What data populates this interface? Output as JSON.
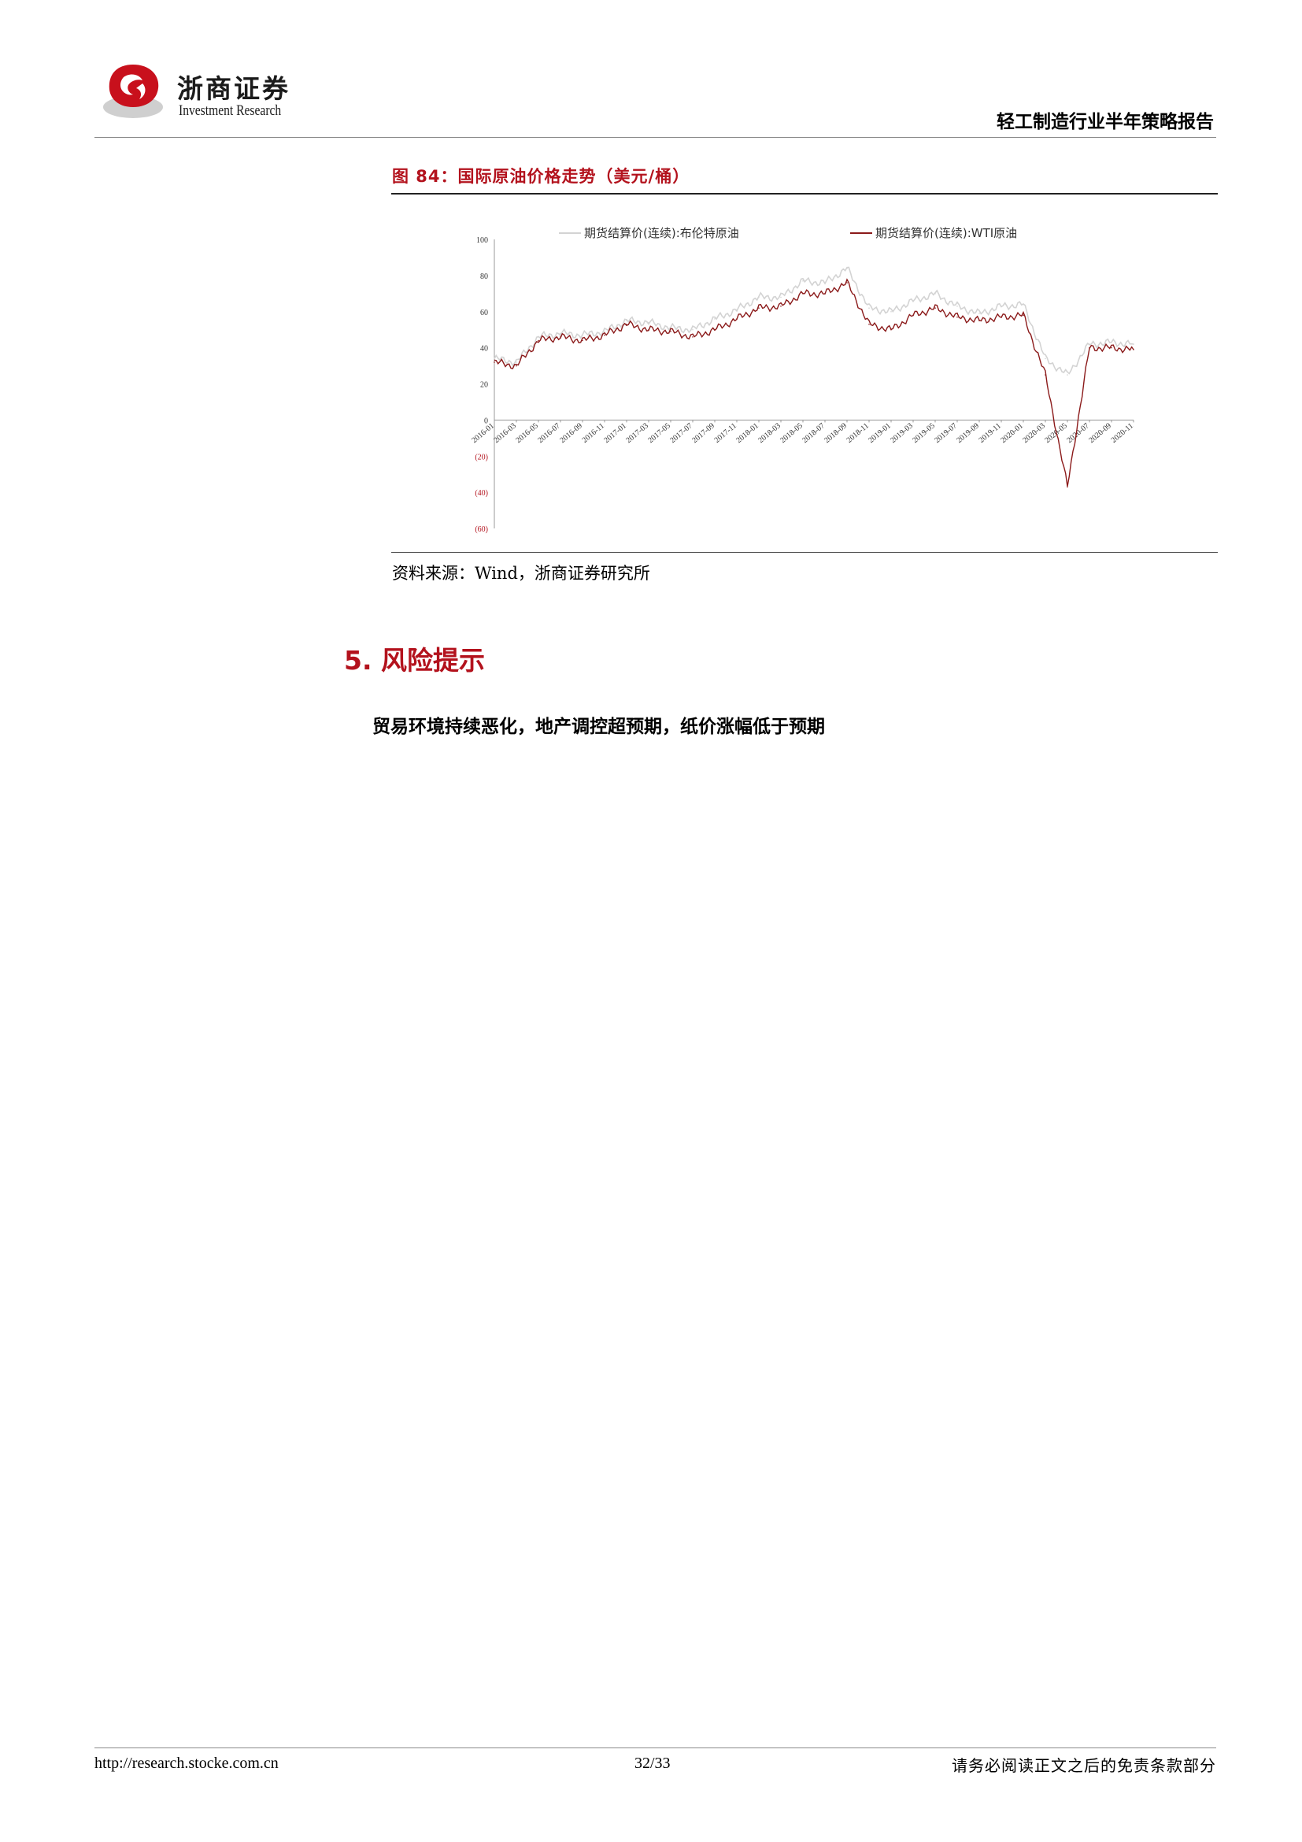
{
  "header": {
    "logo_cn": "浙商证券",
    "logo_en": "Investment Research",
    "report_title": "轻工制造行业半年策略报告"
  },
  "figure": {
    "caption": "图 84：国际原油价格走势（美元/桶）",
    "source": "资料来源：Wind，浙商证券研究所"
  },
  "chart_data": {
    "type": "line",
    "ylim": [
      -60,
      100
    ],
    "y_ticks": [
      "100",
      "80",
      "60",
      "40",
      "20",
      "0",
      "(20)",
      "(40)",
      "(60)"
    ],
    "x_ticks": [
      "2016-01",
      "2016-03",
      "2016-05",
      "2016-07",
      "2016-09",
      "2016-11",
      "2017-01",
      "2017-03",
      "2017-05",
      "2017-07",
      "2017-09",
      "2017-11",
      "2018-01",
      "2018-03",
      "2018-05",
      "2018-07",
      "2018-09",
      "2018-11",
      "2019-01",
      "2019-03",
      "2019-05",
      "2019-07",
      "2019-09",
      "2019-11",
      "2020-01",
      "2020-03",
      "2020-05",
      "2020-07",
      "2020-09",
      "2020-11"
    ],
    "series": [
      {
        "name": "期货结算价(连续):布伦特原油",
        "color": "#d3d3d3",
        "values": [
          34,
          32,
          46,
          48,
          47,
          49,
          55,
          54,
          51,
          50,
          56,
          61,
          68,
          68,
          77,
          76,
          84,
          62,
          60,
          66,
          70,
          63,
          59,
          63,
          64,
          34,
          25,
          42,
          43,
          42
        ]
      },
      {
        "name": "期货结算价(连续):WTI原油",
        "color": "#8b1a1a",
        "values": [
          32,
          30,
          44,
          46,
          44,
          47,
          53,
          50,
          49,
          46,
          50,
          56,
          62,
          63,
          70,
          70,
          76,
          53,
          50,
          58,
          62,
          57,
          55,
          57,
          58,
          25,
          -37,
          40,
          40,
          39
        ]
      }
    ]
  },
  "section": {
    "title": "5. 风险提示",
    "text": "贸易环境持续恶化，地产调控超预期，纸价涨幅低于预期"
  },
  "footer": {
    "url": "http://research.stocke.com.cn",
    "page": "32/33",
    "disclaimer": "请务必阅读正文之后的免责条款部分"
  }
}
